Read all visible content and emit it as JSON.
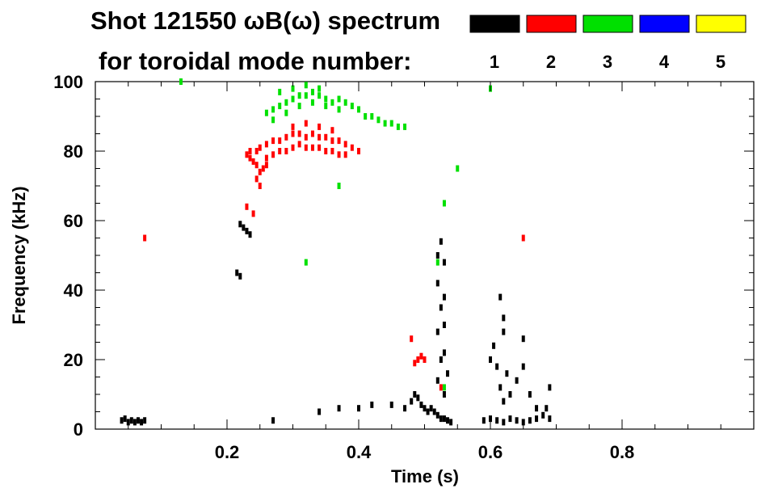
{
  "chart_data": {
    "type": "scatter",
    "title": "Shot 121550 ωB(ω) spectrum",
    "subtitle": "for toroidal mode number:",
    "xlabel": "Time (s)",
    "ylabel": "Frequency (kHz)",
    "xlim": [
      0.0,
      1.0
    ],
    "ylim": [
      0,
      100
    ],
    "x_ticks": [
      0.2,
      0.4,
      0.6,
      0.8
    ],
    "x_tick_labels": [
      "0.2",
      "0.4",
      "0.6",
      "0.8"
    ],
    "y_ticks": [
      0,
      20,
      40,
      60,
      80,
      100
    ],
    "y_tick_labels": [
      "0",
      "20",
      "40",
      "60",
      "80",
      "100"
    ],
    "grid": false,
    "legend_placement": "top-right",
    "legend": [
      {
        "label": "1",
        "color": "#000000"
      },
      {
        "label": "2",
        "color": "#ff0000"
      },
      {
        "label": "3",
        "color": "#00e000"
      },
      {
        "label": "4",
        "color": "#0000ff"
      },
      {
        "label": "5",
        "color": "#ffff00"
      }
    ],
    "series": [
      {
        "color": "#000000",
        "points": [
          [
            0.04,
            2.5
          ],
          [
            0.045,
            3
          ],
          [
            0.05,
            2
          ],
          [
            0.055,
            2.5
          ],
          [
            0.06,
            2
          ],
          [
            0.065,
            2.5
          ],
          [
            0.07,
            2
          ],
          [
            0.075,
            2.5
          ],
          [
            0.22,
            59
          ],
          [
            0.225,
            58
          ],
          [
            0.23,
            57
          ],
          [
            0.235,
            56
          ],
          [
            0.215,
            45
          ],
          [
            0.22,
            44
          ],
          [
            0.27,
            2.5
          ],
          [
            0.34,
            5
          ],
          [
            0.37,
            6
          ],
          [
            0.4,
            6
          ],
          [
            0.42,
            7
          ],
          [
            0.45,
            7
          ],
          [
            0.47,
            6
          ],
          [
            0.48,
            8
          ],
          [
            0.485,
            10
          ],
          [
            0.49,
            9
          ],
          [
            0.495,
            7
          ],
          [
            0.5,
            6
          ],
          [
            0.505,
            5
          ],
          [
            0.51,
            6
          ],
          [
            0.515,
            5
          ],
          [
            0.52,
            4
          ],
          [
            0.525,
            3
          ],
          [
            0.53,
            3
          ],
          [
            0.535,
            2.5
          ],
          [
            0.54,
            2
          ],
          [
            0.52,
            50
          ],
          [
            0.52,
            42
          ],
          [
            0.525,
            35
          ],
          [
            0.52,
            28
          ],
          [
            0.525,
            20
          ],
          [
            0.52,
            14
          ],
          [
            0.53,
            48
          ],
          [
            0.53,
            38
          ],
          [
            0.53,
            30
          ],
          [
            0.53,
            22
          ],
          [
            0.535,
            16
          ],
          [
            0.53,
            10
          ],
          [
            0.525,
            54
          ],
          [
            0.59,
            2.5
          ],
          [
            0.6,
            3
          ],
          [
            0.61,
            2.5
          ],
          [
            0.62,
            2
          ],
          [
            0.63,
            3
          ],
          [
            0.64,
            2.5
          ],
          [
            0.65,
            2
          ],
          [
            0.66,
            2.5
          ],
          [
            0.67,
            3
          ],
          [
            0.68,
            4
          ],
          [
            0.69,
            3
          ],
          [
            0.685,
            6
          ],
          [
            0.69,
            12
          ],
          [
            0.6,
            20
          ],
          [
            0.605,
            24
          ],
          [
            0.61,
            18
          ],
          [
            0.615,
            12
          ],
          [
            0.62,
            8
          ],
          [
            0.625,
            16
          ],
          [
            0.63,
            10
          ],
          [
            0.62,
            32
          ],
          [
            0.615,
            38
          ],
          [
            0.62,
            28
          ],
          [
            0.64,
            14
          ],
          [
            0.65,
            18
          ],
          [
            0.65,
            26
          ],
          [
            0.66,
            10
          ],
          [
            0.67,
            6
          ]
        ]
      },
      {
        "color": "#ff0000",
        "points": [
          [
            0.075,
            55
          ],
          [
            0.23,
            64
          ],
          [
            0.24,
            62
          ],
          [
            0.245,
            72
          ],
          [
            0.23,
            79
          ],
          [
            0.235,
            78
          ],
          [
            0.24,
            77
          ],
          [
            0.245,
            76
          ],
          [
            0.25,
            74
          ],
          [
            0.255,
            75
          ],
          [
            0.235,
            80
          ],
          [
            0.245,
            80
          ],
          [
            0.25,
            81
          ],
          [
            0.26,
            82
          ],
          [
            0.27,
            83
          ],
          [
            0.28,
            83
          ],
          [
            0.29,
            84
          ],
          [
            0.3,
            85
          ],
          [
            0.31,
            85
          ],
          [
            0.32,
            84
          ],
          [
            0.33,
            85
          ],
          [
            0.34,
            84
          ],
          [
            0.35,
            84
          ],
          [
            0.36,
            83
          ],
          [
            0.37,
            83
          ],
          [
            0.38,
            82
          ],
          [
            0.39,
            81
          ],
          [
            0.4,
            80
          ],
          [
            0.26,
            78
          ],
          [
            0.27,
            79
          ],
          [
            0.28,
            80
          ],
          [
            0.29,
            80
          ],
          [
            0.3,
            81
          ],
          [
            0.31,
            82
          ],
          [
            0.32,
            81
          ],
          [
            0.33,
            81
          ],
          [
            0.34,
            81
          ],
          [
            0.35,
            80
          ],
          [
            0.36,
            80
          ],
          [
            0.37,
            79
          ],
          [
            0.38,
            79
          ],
          [
            0.25,
            70
          ],
          [
            0.26,
            76
          ],
          [
            0.3,
            87
          ],
          [
            0.32,
            88
          ],
          [
            0.34,
            87
          ],
          [
            0.36,
            86
          ],
          [
            0.485,
            19
          ],
          [
            0.49,
            20
          ],
          [
            0.495,
            21
          ],
          [
            0.5,
            20
          ],
          [
            0.48,
            26
          ],
          [
            0.65,
            55
          ],
          [
            0.525,
            12
          ]
        ]
      },
      {
        "color": "#00e000",
        "points": [
          [
            0.26,
            91
          ],
          [
            0.27,
            92
          ],
          [
            0.28,
            93
          ],
          [
            0.29,
            94
          ],
          [
            0.3,
            95
          ],
          [
            0.31,
            96
          ],
          [
            0.32,
            96
          ],
          [
            0.33,
            97
          ],
          [
            0.34,
            96
          ],
          [
            0.35,
            95
          ],
          [
            0.36,
            94
          ],
          [
            0.37,
            95
          ],
          [
            0.38,
            94
          ],
          [
            0.39,
            93
          ],
          [
            0.4,
            92
          ],
          [
            0.41,
            90
          ],
          [
            0.42,
            90
          ],
          [
            0.43,
            89
          ],
          [
            0.44,
            88
          ],
          [
            0.45,
            88
          ],
          [
            0.46,
            87
          ],
          [
            0.47,
            87
          ],
          [
            0.28,
            97
          ],
          [
            0.3,
            98
          ],
          [
            0.32,
            99
          ],
          [
            0.34,
            98
          ],
          [
            0.27,
            89
          ],
          [
            0.29,
            91
          ],
          [
            0.31,
            93
          ],
          [
            0.33,
            94
          ],
          [
            0.35,
            93
          ],
          [
            0.37,
            92
          ],
          [
            0.13,
            100
          ],
          [
            0.32,
            48
          ],
          [
            0.37,
            70
          ],
          [
            0.53,
            65
          ],
          [
            0.55,
            75
          ],
          [
            0.52,
            48
          ],
          [
            0.53,
            12
          ],
          [
            0.6,
            98
          ]
        ]
      }
    ]
  }
}
